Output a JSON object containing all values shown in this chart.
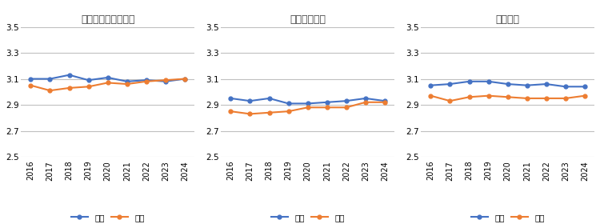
{
  "years": [
    2016,
    2017,
    2018,
    2019,
    2020,
    2021,
    2022,
    2023,
    2024
  ],
  "charts": [
    {
      "title": "仕事そのものに満足",
      "koumu": [
        3.1,
        3.1,
        3.13,
        3.09,
        3.11,
        3.08,
        3.09,
        3.08,
        3.1
      ],
      "minkan": [
        3.05,
        3.01,
        3.03,
        3.04,
        3.07,
        3.06,
        3.08,
        3.09,
        3.1
      ]
    },
    {
      "title": "生き生き働く",
      "koumu": [
        2.95,
        2.93,
        2.95,
        2.91,
        2.91,
        2.92,
        2.93,
        2.95,
        2.93
      ],
      "minkan": [
        2.85,
        2.83,
        2.84,
        2.85,
        2.88,
        2.88,
        2.88,
        2.92,
        2.92
      ]
    },
    {
      "title": "成長実感",
      "koumu": [
        3.05,
        3.06,
        3.08,
        3.08,
        3.06,
        3.05,
        3.06,
        3.04,
        3.04
      ],
      "minkan": [
        2.97,
        2.93,
        2.96,
        2.97,
        2.96,
        2.95,
        2.95,
        2.95,
        2.97
      ]
    }
  ],
  "koumu_color": "#4472C4",
  "minkan_color": "#ED7D31",
  "ylim": [
    2.5,
    3.5
  ],
  "yticks": [
    2.5,
    2.7,
    2.9,
    3.1,
    3.3,
    3.5
  ],
  "legend_koumu": "公務",
  "legend_minkan": "民間",
  "background_color": "#FFFFFF",
  "grid_color": "#C0C0C0",
  "title_color": "#404040"
}
